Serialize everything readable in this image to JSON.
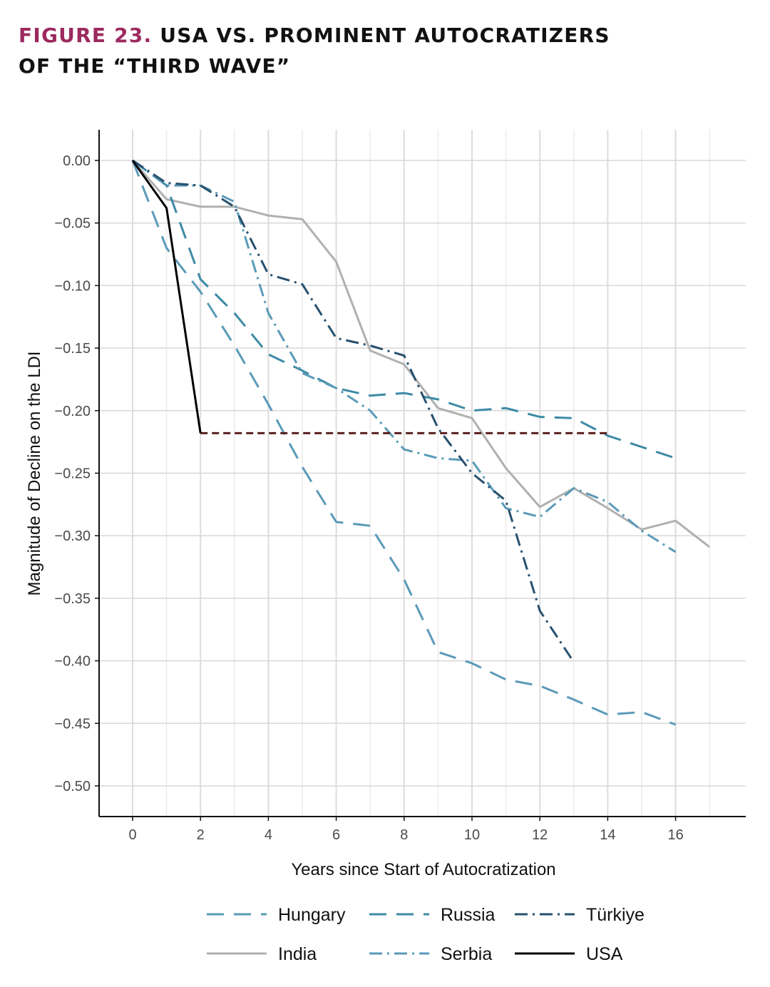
{
  "title": {
    "figure_label": "FIGURE 23.",
    "line1_rest": "USA VS. PROMINENT AUTOCRATIZERS",
    "line2": "OF THE “THIRD WAVE”"
  },
  "chart_data": {
    "type": "line",
    "title": "USA vs. Prominent Autocratizers of the “Third Wave”",
    "xlabel": "Years since Start of Autocratization",
    "ylabel": "Magnitude of Decline on the LDI",
    "xlim": [
      -1,
      18
    ],
    "ylim": [
      -0.525,
      0.025
    ],
    "xticks": [
      0,
      2,
      4,
      6,
      8,
      10,
      12,
      14,
      16
    ],
    "yticks": [
      0.0,
      -0.05,
      -0.1,
      -0.15,
      -0.2,
      -0.25,
      -0.3,
      -0.35,
      -0.4,
      -0.45,
      -0.5
    ],
    "ytick_labels": [
      "0.00",
      "−0.05",
      "−0.10",
      "−0.15",
      "−0.20",
      "−0.25",
      "−0.30",
      "−0.35",
      "−0.40",
      "−0.45",
      "−0.50"
    ],
    "grid": true,
    "legend_position": "bottom",
    "series": [
      {
        "name": "Hungary",
        "color": "#5a9ab8",
        "style": "longdash",
        "x": [
          0,
          1,
          2,
          3,
          4,
          5,
          6,
          7,
          8,
          9,
          10,
          11,
          12,
          13,
          14,
          15,
          16
        ],
        "y": [
          0,
          -0.07,
          -0.105,
          -0.148,
          -0.195,
          -0.245,
          -0.289,
          -0.292,
          -0.335,
          -0.393,
          -0.402,
          -0.415,
          -0.42,
          -0.431,
          -0.443,
          -0.441,
          -0.451
        ]
      },
      {
        "name": "India",
        "color": "#b0b0b0",
        "style": "solid",
        "x": [
          0,
          1,
          2,
          3,
          4,
          5,
          6,
          7,
          8,
          9,
          10,
          11,
          12,
          13,
          14,
          15,
          16,
          17
        ],
        "y": [
          0,
          -0.031,
          -0.037,
          -0.037,
          -0.044,
          -0.047,
          -0.081,
          -0.152,
          -0.163,
          -0.198,
          -0.206,
          -0.246,
          -0.277,
          -0.262,
          -0.278,
          -0.295,
          -0.288,
          -0.309
        ]
      },
      {
        "name": "Russia",
        "color": "#3d8aa6",
        "style": "longdash",
        "x": [
          0,
          1,
          2,
          3,
          4,
          5,
          6,
          7,
          8,
          9,
          10,
          11,
          12,
          13,
          14,
          15,
          16
        ],
        "y": [
          0,
          -0.02,
          -0.095,
          -0.122,
          -0.155,
          -0.168,
          -0.182,
          -0.188,
          -0.186,
          -0.191,
          -0.2,
          -0.198,
          -0.205,
          -0.206,
          -0.22,
          -0.229,
          -0.238
        ]
      },
      {
        "name": "Serbia",
        "color": "#5a9ab8",
        "style": "dotdash",
        "x": [
          0,
          1,
          2,
          3,
          4,
          5,
          6,
          7,
          8,
          9,
          10,
          11,
          12,
          13,
          14,
          15,
          16
        ],
        "y": [
          0,
          -0.02,
          -0.02,
          -0.033,
          -0.122,
          -0.17,
          -0.182,
          -0.2,
          -0.231,
          -0.238,
          -0.24,
          -0.278,
          -0.285,
          -0.262,
          -0.273,
          -0.296,
          -0.313
        ]
      },
      {
        "name": "Türkiye",
        "color": "#27506e",
        "style": "dotdash",
        "x": [
          0,
          1,
          2,
          3,
          4,
          5,
          6,
          7,
          8,
          9,
          10,
          11,
          12,
          13
        ],
        "y": [
          0,
          -0.018,
          -0.02,
          -0.037,
          -0.091,
          -0.099,
          -0.142,
          -0.148,
          -0.156,
          -0.214,
          -0.25,
          -0.272,
          -0.36,
          -0.401
        ]
      },
      {
        "name": "USA",
        "color": "#000000",
        "style": "solid",
        "x": [
          0,
          1,
          2
        ],
        "y": [
          0,
          -0.038,
          -0.218
        ]
      },
      {
        "name": "USA (projection)",
        "color": "#5a2020",
        "style": "dashed",
        "in_legend": false,
        "x": [
          2,
          14
        ],
        "y": [
          -0.218,
          -0.218
        ]
      }
    ],
    "legend": [
      "Hungary",
      "Russia",
      "Türkiye",
      "India",
      "Serbia",
      "USA"
    ]
  }
}
